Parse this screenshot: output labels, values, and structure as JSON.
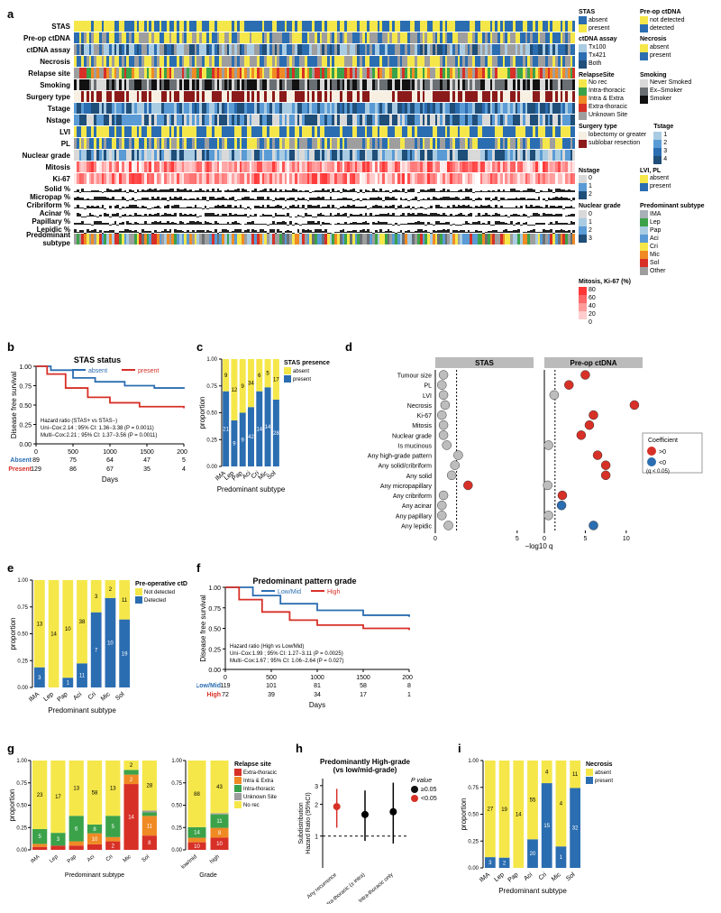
{
  "colors": {
    "blue": "#2b6db1",
    "yellow": "#f5e74a",
    "grey": "#9e9e9e",
    "lightgrey": "#d9d9d9",
    "midblue": "#5a9bd5",
    "darkblue": "#1f4e79",
    "lightblue": "#a9cce3",
    "green": "#3ba24a",
    "orange": "#f08a24",
    "red": "#d73027",
    "darkred": "#8b1a1a",
    "black": "#111111",
    "white": "#ffffff",
    "cream": "#f6efe2",
    "pink": "#ef8a8a",
    "steel": "#6a6f73"
  },
  "panelA": {
    "label": "a",
    "row_labels": [
      "STAS",
      "Pre-op ctDNA",
      "ctDNA assay",
      "Necrosis",
      "Relapse site",
      "Smoking",
      "Surgery type",
      "Tstage",
      "Nstage",
      "LVI",
      "PL",
      "Nuclear grade",
      "Mitosis",
      "Ki-67",
      "Solid %",
      "Micropap %",
      "Cribriform %",
      "Acinar %",
      "Papillary %",
      "Lepidic %",
      "Predominant\nsubtype"
    ],
    "pct_rows": [
      "Solid %",
      "Micropap %",
      "Cribriform %",
      "Acinar %",
      "Papillary %",
      "Lepidic %"
    ],
    "legends": {
      "STAS": {
        "absent": "#2b6db1",
        "present": "#f5e74a"
      },
      "Pre-op ctDNA": {
        "not detected": "#f5e74a",
        "detected": "#2b6db1"
      },
      "ctDNA assay": {
        "Tx100": "#a9cce3",
        "Tx421": "#2b6db1",
        "Both": "#1f4e79"
      },
      "Necrosis": {
        "absent": "#f5e74a",
        "present": "#2b6db1"
      },
      "RelapseSite": {
        "No rec": "#f5e74a",
        "Intra-thoracic": "#3ba24a",
        "Intra & Extra": "#f08a24",
        "Extra-thoracic": "#d73027",
        "Unknown Site": "#9e9e9e"
      },
      "Smoking": {
        "Never Smoked": "#d9d9d9",
        "Ex–Smoker": "#6a6f73",
        "Smoker": "#111111"
      },
      "Surgery type": {
        "lobectomy or greater": "#f6efe2",
        "sublobar resection": "#8b1a1a"
      },
      "Tstage": {
        "1": "#a9cce3",
        "2": "#5a9bd5",
        "3": "#2b6db1",
        "4": "#1f4e79"
      },
      "Nstage": {
        "0": "#d9d9d9",
        "1": "#5a9bd5",
        "2": "#1f4e79"
      },
      "LVI, PL": {
        "absent": "#f5e74a",
        "present": "#2b6db1"
      },
      "Nuclear grade": {
        "0": "#d9d9d9",
        "1": "#a9cce3",
        "2": "#5a9bd5",
        "3": "#1f4e79"
      },
      "Predominant subtype": {
        "IMA": "#aab0b7",
        "Lep": "#3ba24a",
        "Pap": "#a9cce3",
        "Aci": "#5a9bd5",
        "Cri": "#f5e74a",
        "Mic": "#f08a24",
        "Sol": "#d73027",
        "Other": "#9e9e9e"
      },
      "Mitosis, Ki-67 (%)": {
        "gradient_low": "#ffffff",
        "gradient_high": "#d73027",
        "stops": [
          80,
          60,
          40,
          20,
          0
        ]
      }
    }
  },
  "panelB": {
    "label": "b",
    "title": "STAS status",
    "series": [
      {
        "name": "absent",
        "color": "#2b6db1"
      },
      {
        "name": "present",
        "color": "#d73027"
      }
    ],
    "ylabel": "Disease free survival",
    "xlabel": "Days",
    "xticks": [
      0,
      500,
      1000,
      1500,
      2000
    ],
    "yticks": [
      "0.00",
      "0.25",
      "0.50",
      "0.75",
      "1.00"
    ],
    "stats": [
      "Hazard ratio (STAS+ vs STAS−)",
      "Uni−Cox:2.14 ; 95% CI: 1.36−3.38 (P = 0.0011)",
      "Multi−Cox:2.21 ; 95% CI: 1.37−3.56 (P = 0.0011)"
    ],
    "risk_table": {
      "Absent": [
        89,
        75,
        64,
        47,
        5
      ],
      "Present": [
        129,
        86,
        67,
        35,
        4
      ]
    },
    "curves": {
      "absent": [
        [
          0,
          1.0
        ],
        [
          200,
          0.95
        ],
        [
          500,
          0.85
        ],
        [
          800,
          0.8
        ],
        [
          1200,
          0.75
        ],
        [
          1600,
          0.72
        ],
        [
          2000,
          0.71
        ]
      ],
      "present": [
        [
          0,
          1.0
        ],
        [
          150,
          0.9
        ],
        [
          400,
          0.72
        ],
        [
          700,
          0.6
        ],
        [
          1000,
          0.53
        ],
        [
          1400,
          0.48
        ],
        [
          2000,
          0.46
        ]
      ]
    }
  },
  "panelC": {
    "label": "c",
    "ylabel": "proportion",
    "xlabel": "Predominant subtype",
    "legend": {
      "title": "STAS presence",
      "absent": "#f5e74a",
      "present": "#2b6db1"
    },
    "cats": [
      "IMA",
      "Lep",
      "Pap",
      "Aci",
      "Cri",
      "Mic",
      "Sol"
    ],
    "absent": [
      9,
      12,
      9,
      34,
      6,
      5,
      17
    ],
    "present": [
      21,
      9,
      9,
      42,
      14,
      14,
      28
    ]
  },
  "panelD": {
    "label": "d",
    "facets": [
      "STAS",
      "Pre-op ctDNA"
    ],
    "xlabel": "−log10 q",
    "xticks_left": [
      0,
      5
    ],
    "xticks_right": [
      0,
      5,
      10
    ],
    "rows": [
      "Tumour size",
      "PL",
      "LVI",
      "Necrosis",
      "Ki-67",
      "Mitosis",
      "Nuclear grade",
      "Is mucinous",
      "Any high-grade pattern",
      "Any solid/cribriform",
      "Any solid",
      "Any micropapillary",
      "Any cribriform",
      "Any acinar",
      "Any papillary",
      "Any lepidic"
    ],
    "legend": {
      "title": "Coefficient",
      "pos": ">0",
      "neg": "<0",
      "pos_color": "#d73027",
      "neg_color": "#2b6db1",
      "sig": "(q < 0.05)",
      "ns_color": "#bdbdbd"
    },
    "points": {
      "STAS": [
        {
          "row": "Tumour size",
          "x": 0.5,
          "sig": false,
          "sign": 1
        },
        {
          "row": "PL",
          "x": 0.4,
          "sig": false,
          "sign": 1
        },
        {
          "row": "LVI",
          "x": 0.5,
          "sig": false,
          "sign": 1
        },
        {
          "row": "Necrosis",
          "x": 0.6,
          "sig": false,
          "sign": 1
        },
        {
          "row": "Ki-67",
          "x": 0.4,
          "sig": false,
          "sign": 1
        },
        {
          "row": "Mitosis",
          "x": 0.5,
          "sig": false,
          "sign": 1
        },
        {
          "row": "Nuclear grade",
          "x": 0.5,
          "sig": false,
          "sign": 1
        },
        {
          "row": "Is mucinous",
          "x": 0.7,
          "sig": false,
          "sign": 1
        },
        {
          "row": "Any high-grade pattern",
          "x": 1.4,
          "sig": false,
          "sign": 1
        },
        {
          "row": "Any solid/cribriform",
          "x": 1.2,
          "sig": false,
          "sign": 1
        },
        {
          "row": "Any solid",
          "x": 1.0,
          "sig": false,
          "sign": 1
        },
        {
          "row": "Any micropapillary",
          "x": 2.0,
          "sig": true,
          "sign": 1
        },
        {
          "row": "Any cribriform",
          "x": 0.5,
          "sig": false,
          "sign": 1
        },
        {
          "row": "Any acinar",
          "x": 0.4,
          "sig": false,
          "sign": 1
        },
        {
          "row": "Any papillary",
          "x": 0.4,
          "sig": false,
          "sign": 1
        },
        {
          "row": "Any lepidic",
          "x": 0.8,
          "sig": false,
          "sign": -1
        }
      ],
      "Pre-op ctDNA": [
        {
          "row": "Tumour size",
          "x": 5,
          "sig": true,
          "sign": 1
        },
        {
          "row": "PL",
          "x": 3,
          "sig": true,
          "sign": 1
        },
        {
          "row": "LVI",
          "x": 1.2,
          "sig": false,
          "sign": 1
        },
        {
          "row": "Necrosis",
          "x": 11,
          "sig": true,
          "sign": 1
        },
        {
          "row": "Ki-67",
          "x": 6,
          "sig": true,
          "sign": 1
        },
        {
          "row": "Mitosis",
          "x": 5.5,
          "sig": true,
          "sign": 1
        },
        {
          "row": "Nuclear grade",
          "x": 4.5,
          "sig": true,
          "sign": 1
        },
        {
          "row": "Is mucinous",
          "x": 0.5,
          "sig": false,
          "sign": 1
        },
        {
          "row": "Any high-grade pattern",
          "x": 6.5,
          "sig": true,
          "sign": 1
        },
        {
          "row": "Any solid/cribriform",
          "x": 7.5,
          "sig": true,
          "sign": 1
        },
        {
          "row": "Any solid",
          "x": 7.5,
          "sig": true,
          "sign": 1
        },
        {
          "row": "Any micropapillary",
          "x": 0.4,
          "sig": false,
          "sign": 1
        },
        {
          "row": "Any cribriform",
          "x": 2.2,
          "sig": true,
          "sign": 1
        },
        {
          "row": "Any acinar",
          "x": 2.1,
          "sig": true,
          "sign": -1
        },
        {
          "row": "Any papillary",
          "x": 0.5,
          "sig": false,
          "sign": 1
        },
        {
          "row": "Any lepidic",
          "x": 6,
          "sig": true,
          "sign": -1
        }
      ]
    }
  },
  "panelE": {
    "label": "e",
    "ylabel": "proportion",
    "xlabel": "Predominant subtype",
    "legend": {
      "title": "Pre-operative ctDNA",
      "Not detected": "#f5e74a",
      "Detected": "#2b6db1"
    },
    "cats": [
      "IMA",
      "Lep",
      "Pap",
      "Aci",
      "Cri",
      "Mic",
      "Sol"
    ],
    "notdet": [
      13,
      14,
      10,
      38,
      3,
      2,
      11
    ],
    "det": [
      3,
      0,
      1,
      11,
      7,
      10,
      19
    ]
  },
  "panelF": {
    "label": "f",
    "title": "Predominant pattern grade",
    "series": [
      {
        "name": "Low/Mid",
        "color": "#2b6db1"
      },
      {
        "name": "High",
        "color": "#d73027"
      }
    ],
    "ylabel": "Disease free survival",
    "xlabel": "Days",
    "xticks": [
      0,
      500,
      1000,
      1500,
      2000
    ],
    "yticks": [
      "0.00",
      "0.25",
      "0.50",
      "0.75",
      "1.00"
    ],
    "stats": [
      "Hazard ratio (High vs Low/Mid)",
      "Uni−Cox:1.99 ; 95% CI: 1.27−3.11 (P = 0.0025)",
      "Multi−Cox:1.67 ; 95% CI: 1.06−2.64 (P = 0.027)"
    ],
    "risk_table": {
      "Low/Mid": [
        119,
        101,
        81,
        58,
        8
      ],
      "High": [
        72,
        39,
        34,
        17,
        1
      ]
    },
    "curves": {
      "Low/Mid": [
        [
          0,
          1.0
        ],
        [
          300,
          0.9
        ],
        [
          600,
          0.8
        ],
        [
          1000,
          0.72
        ],
        [
          1500,
          0.66
        ],
        [
          2000,
          0.64
        ]
      ],
      "High": [
        [
          0,
          1.0
        ],
        [
          150,
          0.85
        ],
        [
          400,
          0.7
        ],
        [
          700,
          0.6
        ],
        [
          1000,
          0.54
        ],
        [
          1500,
          0.5
        ],
        [
          2000,
          0.48
        ]
      ]
    }
  },
  "panelG": {
    "label": "g",
    "ylabel": "proportion",
    "xlabel_left": "Predominant subtype",
    "xlabel_right": "Grade",
    "legend": {
      "title": "Relapse site",
      "Extra-thoracic": "#d73027",
      "Intra & Extra": "#f08a24",
      "Intra-thoracic": "#3ba24a",
      "Unknown Site": "#9e9e9e",
      "No rec": "#f5e74a"
    },
    "left": {
      "cats": [
        "IMA",
        "Lep",
        "Pap",
        "Aci",
        "Cri",
        "Mic",
        "Sol"
      ],
      "norec": [
        23,
        17,
        13,
        58,
        13,
        2,
        28
      ],
      "unk": [
        0,
        0,
        0,
        0,
        0,
        0,
        1
      ],
      "intra": [
        5,
        3,
        6,
        8,
        5,
        1,
        2
      ],
      "both": [
        1,
        0,
        1,
        10,
        1,
        2,
        11
      ],
      "extra": [
        1,
        1,
        1,
        5,
        2,
        14,
        8
      ]
    },
    "right": {
      "cats": [
        "low/mid",
        "high"
      ],
      "norec": [
        88,
        43
      ],
      "unk": [
        0,
        1
      ],
      "intra": [
        14,
        11
      ],
      "both": [
        6,
        8
      ],
      "extra": [
        10,
        10
      ]
    }
  },
  "panelH": {
    "label": "h",
    "title": "Predominantly High-grade\n(vs low/mid-grade)",
    "ylabel": "Subdistribution\nHazard Ratio (95%CI)",
    "xcats": [
      "Any recurrence",
      "Extra-thoracic (± intra)",
      "Intra-thoracic only"
    ],
    "points": [
      {
        "cat": "Any recurrence",
        "hr": 1.9,
        "lo": 1.2,
        "hi": 2.8,
        "sig": true
      },
      {
        "cat": "Extra-thoracic (± intra)",
        "hr": 1.6,
        "lo": 0.9,
        "hi": 2.7,
        "sig": false
      },
      {
        "cat": "Intra-thoracic only",
        "hr": 1.7,
        "lo": 0.85,
        "hi": 3.2,
        "sig": false
      }
    ],
    "plegend": {
      "title": "P value",
      "ge": "≥0.05",
      "lt": "<0.05",
      "ge_color": "#111111",
      "lt_color": "#d73027"
    }
  },
  "panelI": {
    "label": "i",
    "ylabel": "proportion",
    "xlabel": "Predominant subtype",
    "legend": {
      "title": "Necrosis",
      "absent": "#f5e74a",
      "present": "#2b6db1"
    },
    "cats": [
      "IMA",
      "Lep",
      "Pap",
      "Aci",
      "Cri",
      "Mic",
      "Sol"
    ],
    "absent": [
      27,
      19,
      14,
      55,
      4,
      4,
      11
    ],
    "present": [
      3,
      2,
      0,
      20,
      15,
      1,
      32
    ]
  }
}
